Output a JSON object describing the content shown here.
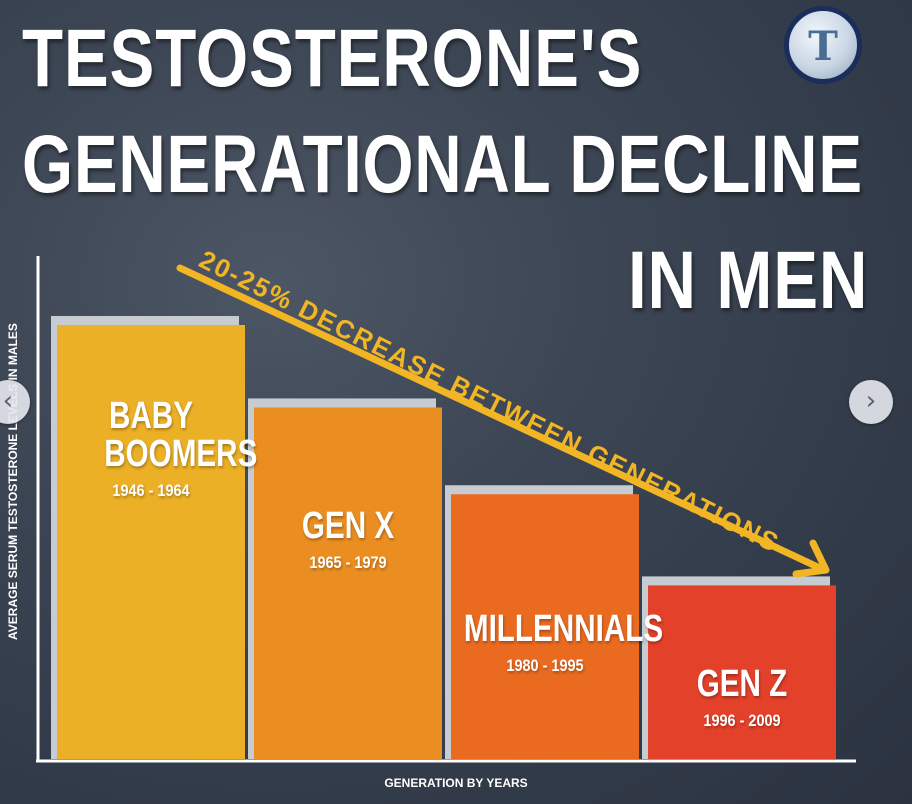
{
  "title": {
    "line1": "TESTOSTERONE'S",
    "line2": "GENERATIONAL DECLINE",
    "line3": "IN MEN"
  },
  "logo": {
    "glyph": "T"
  },
  "nav": {
    "prev_icon": "chevron-left-icon",
    "next_icon": "chevron-right-icon",
    "prev_glyph": "‹",
    "next_glyph": "›"
  },
  "chart_data": {
    "type": "bar",
    "categories": [
      "BABY BOOMERS",
      "GEN X",
      "MILLENNIALS",
      "GEN Z"
    ],
    "years": [
      "1946 - 1964",
      "1965 - 1979",
      "1980 - 1995",
      "1996 - 2009"
    ],
    "values": [
      100,
      81,
      61,
      40
    ],
    "colors": [
      "#ecb026",
      "#eb8e22",
      "#ea6b20",
      "#e4412a"
    ],
    "xlabel": "GENERATION BY YEARS",
    "ylabel": "AVERAGE SERUM TESTOSTERONE LEVELS IN MALES",
    "ylim": [
      0,
      100
    ],
    "annotation": "20-25% DECREASE BETWEEN GENERATIONS"
  }
}
